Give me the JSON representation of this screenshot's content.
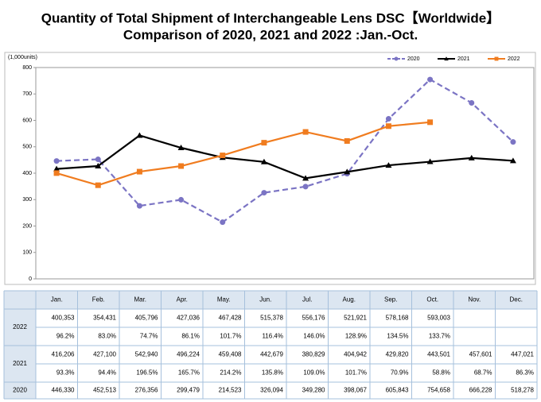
{
  "chart_data": {
    "type": "line",
    "title": [
      "Quantity of Total Shipment of Interchangeable Lens DSC【Worldwide】",
      "Comparison of 2020, 2021 and 2022 :Jan.-Oct."
    ],
    "y_unit": "(1,000units)",
    "categories": [
      "Jan.",
      "Feb.",
      "Mar.",
      "Apr.",
      "May.",
      "Jun.",
      "Jul.",
      "Aug.",
      "Sep.",
      "Oct.",
      "Nov.",
      "Dec."
    ],
    "ylim": [
      0,
      800
    ],
    "yticks": [
      0,
      100,
      200,
      300,
      400,
      500,
      600,
      700,
      800
    ],
    "grid": false,
    "legend": "top-right",
    "series": [
      {
        "name": "2020",
        "color": "#7b74c4",
        "dash": true,
        "marker": "circle",
        "values": [
          446.33,
          452.513,
          276.356,
          299.479,
          214.523,
          326.094,
          349.28,
          398.067,
          605.843,
          754.658,
          666.228,
          518.278
        ],
        "value_labels": [
          "446,330",
          "452,513",
          "276,356",
          "299,479",
          "214,523",
          "326,094",
          "349,280",
          "398,067",
          "605,843",
          "754,658",
          "666,228",
          "518,278"
        ]
      },
      {
        "name": "2021",
        "color": "#000000",
        "dash": false,
        "marker": "triangle",
        "values": [
          416.206,
          427.1,
          542.94,
          496.224,
          459.408,
          442.679,
          380.829,
          404.942,
          429.82,
          443.501,
          457.601,
          447.021
        ],
        "value_labels": [
          "416,206",
          "427,100",
          "542,940",
          "496,224",
          "459,408",
          "442,679",
          "380,829",
          "404,942",
          "429,820",
          "443,501",
          "457,601",
          "447,021"
        ],
        "ratio_labels": [
          "93.3%",
          "94.4%",
          "196.5%",
          "165.7%",
          "214.2%",
          "135.8%",
          "109.0%",
          "101.7%",
          "70.9%",
          "58.8%",
          "68.7%",
          "86.3%"
        ]
      },
      {
        "name": "2022",
        "color": "#f07c1f",
        "dash": false,
        "marker": "square",
        "values": [
          400.353,
          354.431,
          405.796,
          427.036,
          467.428,
          515.378,
          556.176,
          521.921,
          578.168,
          593.003,
          null,
          null
        ],
        "value_labels": [
          "400,353",
          "354,431",
          "405,796",
          "427,036",
          "467,428",
          "515,378",
          "556,176",
          "521,921",
          "578,168",
          "593,003",
          null,
          null
        ],
        "ratio_labels": [
          "96.2%",
          "83.0%",
          "74.7%",
          "86.1%",
          "101.7%",
          "116.4%",
          "146.0%",
          "128.9%",
          "134.5%",
          "133.7%",
          null,
          null
        ]
      }
    ]
  }
}
